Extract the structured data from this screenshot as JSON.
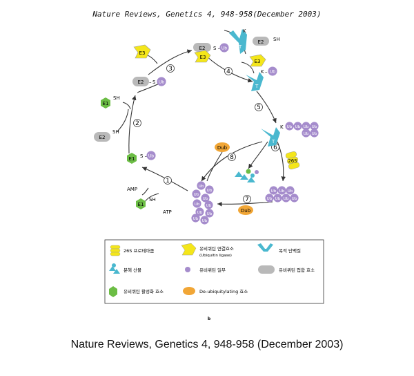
{
  "header": {
    "citation": "Nature Reviews, Genetics 4, 948-958(December 2003)"
  },
  "footer": {
    "citation": "Nature Reviews, Genetics 4, 948-958 (December 2003)"
  },
  "labels": {
    "e1": "E1",
    "e2": "E2",
    "e3": "E3",
    "sh": "SH",
    "s": "S",
    "ub": "Ub",
    "k": "K",
    "t": "T",
    "dub": "Dub",
    "p26s": "26S",
    "amp": "AMP",
    "atp": "ATP"
  },
  "steps": [
    "1",
    "2",
    "3",
    "4",
    "5",
    "6",
    "7",
    "8"
  ],
  "legend": {
    "proteasome": "26S 프로테아좀",
    "ligase": "유비퀴틴 연결효소",
    "ligase_en": "(Ubiquitin ligase)",
    "target": "목적 단백질",
    "fragments": "분해 산물",
    "ubiquitin": "유비퀴틴 일부",
    "conjugating": "유비퀴틴 접합 효소",
    "activating": "유비퀴틴 활성화 효소",
    "deub": "De-ubiquitylating 효소"
  },
  "panel_label": "b",
  "colors": {
    "yellow": "#f4e61a",
    "cyan": "#4ab8cf",
    "gray": "#b9b9b9",
    "green": "#6cbd45",
    "orange": "#f1a636",
    "purple": "#a58ccc",
    "pink": "#f3c4dc",
    "line": "#333333"
  }
}
